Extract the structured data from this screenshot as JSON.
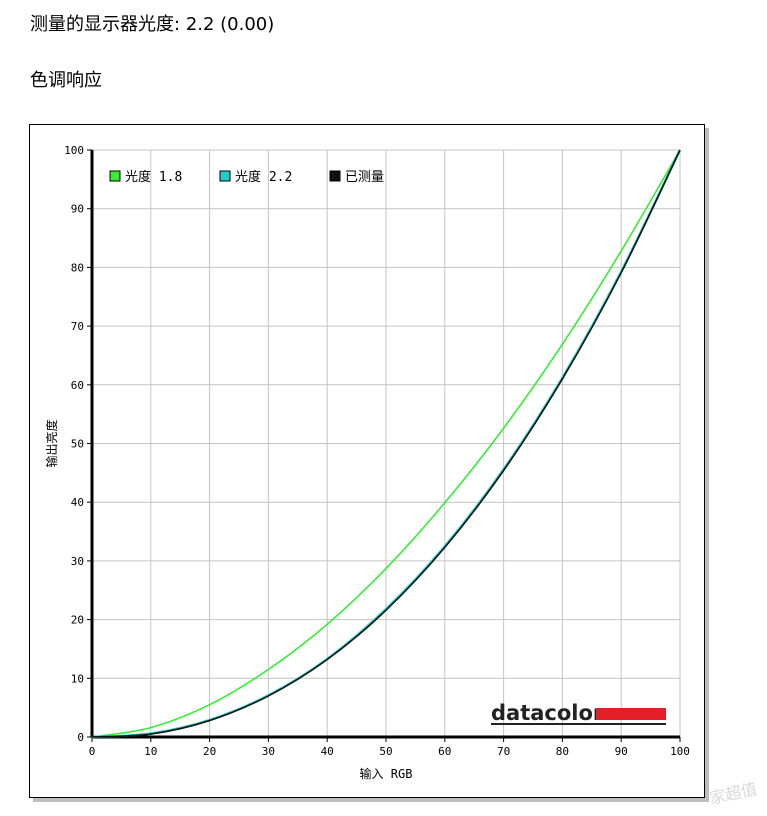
{
  "header": {
    "gamma_label": "测量的显示器光度:",
    "gamma_value": "2.2 (0.00)",
    "section_title": "色调响应"
  },
  "watermark": "家超值",
  "brand": {
    "name": "datacolor",
    "bar_color": "#e3202a"
  },
  "chart_data": {
    "type": "line",
    "xlabel": "输入 RGB",
    "ylabel": "输出亮度",
    "xlim": [
      0,
      100
    ],
    "ylim": [
      0,
      100
    ],
    "xticks": [
      0,
      10,
      20,
      30,
      40,
      50,
      60,
      70,
      80,
      90,
      100
    ],
    "yticks": [
      0,
      10,
      20,
      30,
      40,
      50,
      60,
      70,
      80,
      90,
      100
    ],
    "grid": true,
    "legend_position": "top-left",
    "series": [
      {
        "name": "光度 1.8",
        "color": "#33ee33",
        "x": [
          0,
          10,
          20,
          30,
          40,
          50,
          60,
          70,
          80,
          90,
          100
        ],
        "y": [
          0,
          1.6,
          5.5,
          11.5,
          19.2,
          28.7,
          39.9,
          52.6,
          66.9,
          82.8,
          100
        ]
      },
      {
        "name": "光度 2.2",
        "color": "#22cccc",
        "x": [
          0,
          10,
          20,
          30,
          40,
          50,
          60,
          70,
          80,
          90,
          100
        ],
        "y": [
          0,
          0.6,
          2.9,
          7.1,
          13.3,
          21.8,
          32.5,
          45.6,
          61.2,
          79.3,
          100
        ]
      },
      {
        "name": "已测量",
        "color": "#111111",
        "x": [
          0,
          10,
          20,
          30,
          40,
          50,
          60,
          70,
          80,
          90,
          100
        ],
        "y": [
          0,
          0.5,
          2.8,
          7.0,
          13.2,
          21.6,
          32.3,
          45.4,
          61.0,
          79.1,
          100
        ]
      }
    ]
  }
}
